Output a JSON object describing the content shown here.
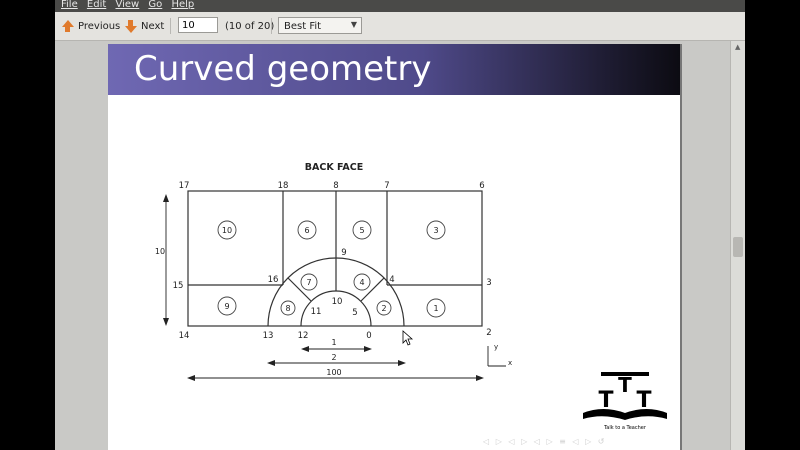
{
  "menu": [
    "File",
    "Edit",
    "View",
    "Go",
    "Help"
  ],
  "toolbar": {
    "previous_label": "Previous",
    "next_label": "Next",
    "page_value": "10",
    "page_count": "(10 of 20)",
    "zoom_value": "Best Fit"
  },
  "slide": {
    "title": "Curved geometry",
    "figure_title": "BACK FACE",
    "point_labels": [
      "17",
      "18",
      "8",
      "7",
      "6",
      "9",
      "16",
      "4",
      "15",
      "3",
      "10",
      "11",
      "5",
      "14",
      "13",
      "12",
      "0",
      "2"
    ],
    "region_labels": [
      "10",
      "6",
      "5",
      "3",
      "7",
      "4",
      "9",
      "8",
      "2",
      "1"
    ],
    "dimensions": {
      "height": "10",
      "d1": "1",
      "d2": "2",
      "d3": "100"
    },
    "axes": {
      "y": "y",
      "x": "x"
    },
    "logo_caption": "Talk to a Teacher",
    "logo_letters": [
      "T",
      "T",
      "T"
    ]
  },
  "nav_glyphs": "◁ ▷ ◁ ▷ ◁ ▷ ≡ ◁ ▷ ↺"
}
